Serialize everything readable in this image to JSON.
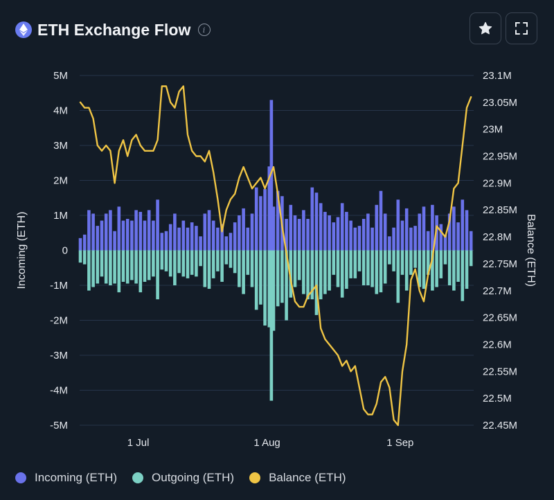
{
  "header": {
    "title": "ETH Exchange Flow",
    "info_glyph": "i",
    "logo_icon": "ethereum-icon",
    "star_icon": "star-icon",
    "expand_icon": "fullscreen-icon"
  },
  "colors": {
    "incoming": "#6a72ea",
    "outgoing": "#7cd0c4",
    "balance": "#f0c545",
    "grid": "#26344a",
    "axis_text": "#e6e9ee",
    "logo": "#6a7cf0"
  },
  "legend": [
    {
      "label": "Incoming (ETH)",
      "color": "#6a72ea"
    },
    {
      "label": "Outgoing (ETH)",
      "color": "#7cd0c4"
    },
    {
      "label": "Balance (ETH)",
      "color": "#f0c545"
    }
  ],
  "chart_data": {
    "type": "bar",
    "title": "ETH Exchange Flow",
    "ylabel_left": "Incoming (ETH)",
    "ylabel_right": "Balance (ETH)",
    "ylim_left": [
      -5000000,
      5000000
    ],
    "ylim_right": [
      22450000,
      23100000
    ],
    "yticks_left": [
      {
        "v": 5000000,
        "label": "5M"
      },
      {
        "v": 4000000,
        "label": "4M"
      },
      {
        "v": 3000000,
        "label": "3M"
      },
      {
        "v": 2000000,
        "label": "2M"
      },
      {
        "v": 1000000,
        "label": "1M"
      },
      {
        "v": 0,
        "label": "0"
      },
      {
        "v": -1000000,
        "label": "-1M"
      },
      {
        "v": -2000000,
        "label": "-2M"
      },
      {
        "v": -3000000,
        "label": "-3M"
      },
      {
        "v": -4000000,
        "label": "-4M"
      },
      {
        "v": -5000000,
        "label": "-5M"
      }
    ],
    "yticks_right": [
      {
        "v": 23100000,
        "label": "23.1M"
      },
      {
        "v": 23050000,
        "label": "23.05M"
      },
      {
        "v": 23000000,
        "label": "23M"
      },
      {
        "v": 22950000,
        "label": "22.95M"
      },
      {
        "v": 22900000,
        "label": "22.9M"
      },
      {
        "v": 22850000,
        "label": "22.85M"
      },
      {
        "v": 22800000,
        "label": "22.8M"
      },
      {
        "v": 22750000,
        "label": "22.75M"
      },
      {
        "v": 22700000,
        "label": "22.7M"
      },
      {
        "v": 22650000,
        "label": "22.65M"
      },
      {
        "v": 22600000,
        "label": "22.6M"
      },
      {
        "v": 22550000,
        "label": "22.55M"
      },
      {
        "v": 22500000,
        "label": "22.5M"
      },
      {
        "v": 22450000,
        "label": "22.45M"
      }
    ],
    "xticks": [
      {
        "day": 13,
        "label": "1 Jul"
      },
      {
        "day": 43,
        "label": "1 Aug"
      },
      {
        "day": 74,
        "label": "1 Sep"
      }
    ],
    "days": 92,
    "grid": true,
    "legend_position": "bottom-left",
    "incoming": [
      350000,
      450000,
      1150000,
      1050000,
      700000,
      850000,
      1050000,
      1150000,
      550000,
      1250000,
      850000,
      900000,
      850000,
      1150000,
      1100000,
      850000,
      1150000,
      850000,
      1450000,
      500000,
      550000,
      750000,
      1050000,
      650000,
      850000,
      650000,
      800000,
      700000,
      400000,
      1050000,
      1150000,
      850000,
      650000,
      750000,
      400000,
      500000,
      800000,
      1000000,
      1200000,
      650000,
      1050000,
      1800000,
      1550000,
      1750000,
      2400000,
      1250000,
      1700000,
      1550000,
      900000,
      1300000,
      1000000,
      900000,
      1150000,
      900000,
      1800000,
      1650000,
      1350000,
      1100000,
      1000000,
      800000,
      950000,
      1350000,
      1100000,
      850000,
      650000,
      700000,
      900000,
      1050000,
      650000,
      1300000,
      1700000,
      1050000,
      400000,
      650000,
      1450000,
      850000,
      1200000,
      650000,
      700000,
      1050000,
      1250000,
      550000,
      1300000,
      1000000,
      750000,
      450000,
      1050000,
      1250000,
      800000,
      1450000,
      1150000,
      550000
    ],
    "outgoing": [
      350000,
      400000,
      1150000,
      1050000,
      950000,
      750000,
      950000,
      1000000,
      950000,
      1200000,
      900000,
      950000,
      850000,
      950000,
      1200000,
      900000,
      850000,
      750000,
      1400000,
      550000,
      600000,
      750000,
      1000000,
      650000,
      750000,
      800000,
      700000,
      750000,
      450000,
      1050000,
      1100000,
      800000,
      600000,
      900000,
      400000,
      500000,
      650000,
      1050000,
      1250000,
      700000,
      1050000,
      1700000,
      1550000,
      2150000,
      2200000,
      2300000,
      1600000,
      1500000,
      2000000,
      1350000,
      1050000,
      850000,
      1250000,
      1400000,
      1400000,
      1850000,
      1400000,
      1250000,
      1150000,
      700000,
      1050000,
      1350000,
      1100000,
      800000,
      800000,
      600000,
      1000000,
      1000000,
      1050000,
      1250000,
      1200000,
      950000,
      400000,
      600000,
      1500000,
      700000,
      1150000,
      700000,
      500000,
      1050000,
      1100000,
      700000,
      1150000,
      1050000,
      800000,
      400000,
      1000000,
      1150000,
      900000,
      1450000,
      1100000,
      450000
    ],
    "spike": {
      "day": 44.5,
      "incoming": 4300000,
      "outgoing": 4300000
    },
    "balance": [
      23050000,
      23040000,
      23040000,
      23020000,
      22970000,
      22960000,
      22970000,
      22960000,
      22900000,
      22960000,
      22980000,
      22950000,
      22980000,
      22990000,
      22970000,
      22960000,
      22960000,
      22960000,
      22980000,
      23080000,
      23080000,
      23050000,
      23040000,
      23070000,
      23080000,
      22990000,
      22960000,
      22950000,
      22950000,
      22940000,
      22960000,
      22920000,
      22870000,
      22810000,
      22850000,
      22870000,
      22880000,
      22910000,
      22930000,
      22910000,
      22890000,
      22900000,
      22910000,
      22890000,
      22910000,
      22930000,
      22880000,
      22820000,
      22770000,
      22720000,
      22680000,
      22670000,
      22670000,
      22690000,
      22700000,
      22710000,
      22630000,
      22610000,
      22600000,
      22590000,
      22580000,
      22560000,
      22570000,
      22550000,
      22560000,
      22520000,
      22480000,
      22470000,
      22470000,
      22490000,
      22530000,
      22540000,
      22520000,
      22460000,
      22450000,
      22550000,
      22600000,
      22720000,
      22740000,
      22700000,
      22680000,
      22730000,
      22760000,
      22820000,
      22810000,
      22800000,
      22830000,
      22890000,
      22900000,
      22970000,
      23040000,
      23060000
    ]
  }
}
